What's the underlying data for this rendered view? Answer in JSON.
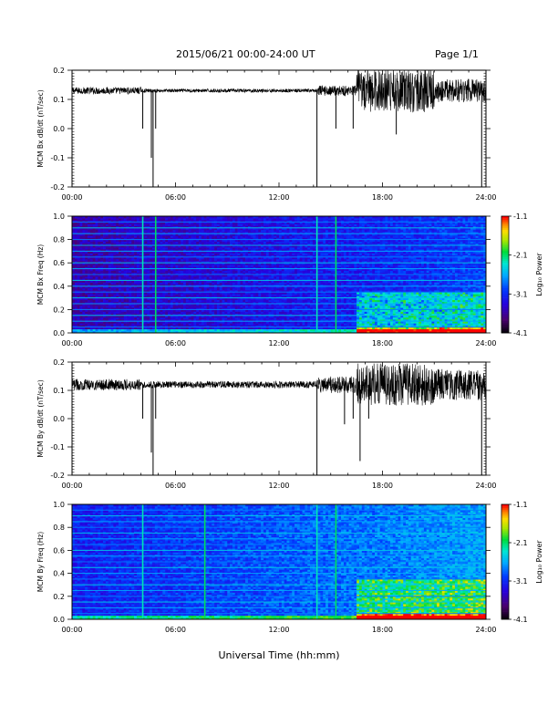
{
  "header": {
    "title": "2015/06/21  00:00-24:00 UT",
    "page": "Page 1/1"
  },
  "footer": {
    "xlabel": "Universal Time (hh:mm)"
  },
  "colors": {
    "trace": "#000000",
    "colormap": "rainbow (black-purple-blue-cyan-green-yellow-orange-red)"
  },
  "chart_data": [
    {
      "type": "line",
      "ylabel": "MCM Bx dB/dt (nT/sec)",
      "xlim": [
        0,
        24
      ],
      "ylim": [
        -0.2,
        0.2
      ],
      "xticks": [
        "00:00",
        "06:00",
        "12:00",
        "18:00",
        "24:00"
      ],
      "yticks": [
        "-0.2",
        "-0.1",
        "0.0",
        "0.1",
        "0.2"
      ],
      "baseline": 0.13,
      "spikes": [
        {
          "x": 4.1,
          "y": 0.0
        },
        {
          "x": 4.6,
          "y": -0.1
        },
        {
          "x": 4.7,
          "y": -0.2
        },
        {
          "x": 4.85,
          "y": 0.0
        },
        {
          "x": 14.2,
          "y": -0.2
        },
        {
          "x": 15.3,
          "y": 0.0
        },
        {
          "x": 16.3,
          "y": 0.0
        },
        {
          "x": 18.8,
          "y": -0.02
        },
        {
          "x": 23.75,
          "y": -0.2
        }
      ],
      "segments": [
        {
          "x0": 0,
          "x1": 4,
          "noise": 0.012
        },
        {
          "x0": 4,
          "x1": 14.2,
          "noise": 0.006
        },
        {
          "x0": 14.2,
          "x1": 16.5,
          "noise": 0.018
        },
        {
          "x0": 16.5,
          "x1": 21,
          "noise": 0.075
        },
        {
          "x0": 21,
          "x1": 24,
          "noise": 0.04
        }
      ]
    },
    {
      "type": "heatmap",
      "ylabel": "MCM Bx Freq (Hz)",
      "colorbar_label": "Log₁₀ Power",
      "xlim": [
        0,
        24
      ],
      "ylim": [
        0,
        1.0
      ],
      "xticks": [
        "00:00",
        "06:00",
        "12:00",
        "18:00",
        "24:00"
      ],
      "yticks": [
        "0.0",
        "0.2",
        "0.4",
        "0.6",
        "0.8",
        "1.0"
      ],
      "clim": [
        -4.1,
        -1.1
      ],
      "cticks": [
        "-1.1",
        "-2.1",
        "-3.1",
        "-4.1"
      ],
      "harmonic_lines_hz": [
        0.05,
        0.1,
        0.15,
        0.2,
        0.25,
        0.3,
        0.35,
        0.4,
        0.45,
        0.5,
        0.55,
        0.6,
        0.65,
        0.7,
        0.75,
        0.8,
        0.85,
        0.9,
        0.95,
        1.0
      ],
      "vertical_events": [
        4.1,
        4.85,
        14.2,
        15.3
      ],
      "activity": {
        "x0": 16.5,
        "x1": 24,
        "fmax": 0.35
      }
    },
    {
      "type": "line",
      "ylabel": "MCM By dB/dt (nT/sec)",
      "xlim": [
        0,
        24
      ],
      "ylim": [
        -0.2,
        0.2
      ],
      "xticks": [
        "00:00",
        "06:00",
        "12:00",
        "18:00",
        "24:00"
      ],
      "yticks": [
        "-0.2",
        "-0.1",
        "0.0",
        "0.1",
        "0.2"
      ],
      "baseline": 0.12,
      "spikes": [
        {
          "x": 4.1,
          "y": 0.0
        },
        {
          "x": 4.6,
          "y": -0.12
        },
        {
          "x": 4.7,
          "y": -0.2
        },
        {
          "x": 4.85,
          "y": 0.0
        },
        {
          "x": 14.2,
          "y": -0.2
        },
        {
          "x": 15.8,
          "y": -0.02
        },
        {
          "x": 16.3,
          "y": 0.0
        },
        {
          "x": 16.7,
          "y": -0.15
        },
        {
          "x": 17.2,
          "y": 0.0
        },
        {
          "x": 23.75,
          "y": -0.2
        }
      ],
      "segments": [
        {
          "x0": 0,
          "x1": 4,
          "noise": 0.02
        },
        {
          "x0": 4,
          "x1": 14.2,
          "noise": 0.012
        },
        {
          "x0": 14.2,
          "x1": 16.5,
          "noise": 0.03
        },
        {
          "x0": 16.5,
          "x1": 21,
          "noise": 0.075
        },
        {
          "x0": 21,
          "x1": 24,
          "noise": 0.055
        }
      ]
    },
    {
      "type": "heatmap",
      "ylabel": "MCM By Freq (Hz)",
      "colorbar_label": "Log₁₀ Power",
      "xlim": [
        0,
        24
      ],
      "ylim": [
        0,
        1.0
      ],
      "xticks": [
        "00:00",
        "06:00",
        "12:00",
        "18:00",
        "24:00"
      ],
      "yticks": [
        "0.0",
        "0.2",
        "0.4",
        "0.6",
        "0.8",
        "1.0"
      ],
      "clim": [
        -4.1,
        -1.1
      ],
      "cticks": [
        "-1.1",
        "-2.1",
        "-3.1",
        "-4.1"
      ],
      "harmonic_lines_hz": [
        0.05,
        0.1,
        0.15,
        0.2,
        0.25,
        0.3,
        0.35,
        0.4,
        0.45,
        0.5,
        0.55,
        0.6,
        0.65,
        0.7,
        0.75,
        0.8,
        0.85,
        0.9,
        0.95,
        1.0
      ],
      "vertical_events": [
        4.1,
        7.7,
        14.2,
        15.3
      ],
      "activity": {
        "x0": 16.5,
        "x1": 24,
        "fmax": 0.35
      }
    }
  ]
}
